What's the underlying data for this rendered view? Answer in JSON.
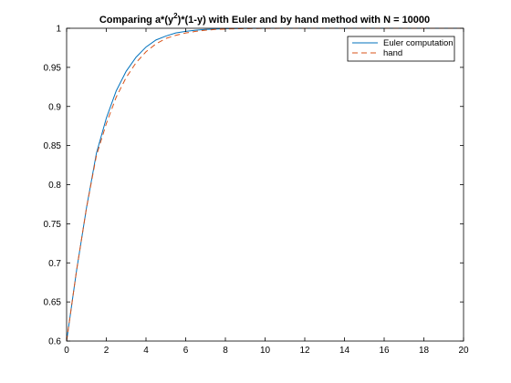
{
  "chart_data": {
    "type": "line",
    "title_parts": {
      "prefix": "Comparing a*(y",
      "superscript": "2",
      "suffix": ")*(1-y) with Euler and by hand method with N = 10000"
    },
    "xlabel": "",
    "ylabel": "",
    "xlim": [
      0,
      20
    ],
    "ylim": [
      0.6,
      1
    ],
    "x_ticks": [
      0,
      2,
      4,
      6,
      8,
      10,
      12,
      14,
      16,
      18,
      20
    ],
    "y_ticks": [
      0.6,
      0.65,
      0.7,
      0.75,
      0.8,
      0.85,
      0.9,
      0.95,
      1
    ],
    "grid": false,
    "legend_position": "top-right",
    "series": [
      {
        "name": "Euler computation",
        "color": "#0072BD",
        "style": "solid",
        "x": [
          0,
          0.5,
          1,
          1.5,
          2,
          2.5,
          3,
          3.5,
          4,
          4.5,
          5,
          5.5,
          6,
          6.5,
          7,
          7.5,
          8,
          9,
          10,
          12,
          14,
          16,
          18,
          20
        ],
        "y": [
          0.6,
          0.69,
          0.77,
          0.84,
          0.885,
          0.92,
          0.945,
          0.963,
          0.976,
          0.985,
          0.99,
          0.994,
          0.996,
          0.9975,
          0.9985,
          0.999,
          0.9995,
          0.9998,
          1,
          1,
          1,
          1,
          1,
          1
        ]
      },
      {
        "name": "hand",
        "color": "#D95319",
        "style": "dashed",
        "x": [
          0,
          0.5,
          1,
          1.5,
          2,
          2.5,
          3,
          3.5,
          4,
          4.5,
          5,
          5.5,
          6,
          6.5,
          7,
          7.5,
          8,
          9,
          10,
          12,
          14,
          16,
          18,
          20
        ],
        "y": [
          0.6,
          0.69,
          0.77,
          0.837,
          0.878,
          0.912,
          0.937,
          0.956,
          0.97,
          0.98,
          0.987,
          0.991,
          0.994,
          0.996,
          0.9975,
          0.9985,
          0.999,
          0.9996,
          0.9999,
          1,
          1,
          1,
          1,
          1
        ]
      }
    ]
  }
}
